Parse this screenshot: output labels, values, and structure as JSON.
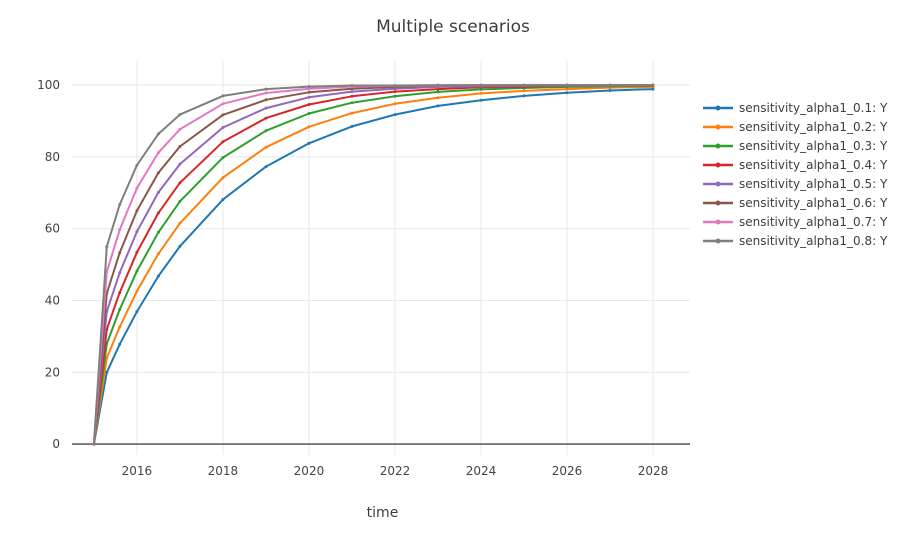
{
  "figure": {
    "title": "Multiple scenarios",
    "x_axis_label": "time"
  },
  "chart_data": {
    "type": "line",
    "title": "Multiple scenarios",
    "xlabel": "time",
    "ylabel": "",
    "xlim": [
      2014.56,
      2028.86
    ],
    "ylim": [
      -5,
      107
    ],
    "x_ticks": [
      2016,
      2018,
      2020,
      2022,
      2024,
      2026,
      2028
    ],
    "y_ticks": [
      0,
      20,
      40,
      60,
      80,
      100
    ],
    "grid": true,
    "legend_position": "right",
    "background_color": "#ffffff",
    "grid_color": "#e8e8e8",
    "zero_line_color": "#444444",
    "text_color": "#3d3d3d",
    "x": [
      2015,
      2015.3,
      2015.6,
      2016,
      2016.5,
      2017,
      2018,
      2019,
      2020,
      2021,
      2022,
      2023,
      2024,
      2025,
      2026,
      2027,
      2028
    ],
    "series": [
      {
        "name": "sensitivity_alpha1_0.1: Y",
        "alpha1": 0.1,
        "color": "#1f77b4",
        "values": [
          0,
          20,
          27.8,
          36.9,
          46.8,
          55.1,
          68.1,
          77.3,
          83.8,
          88.5,
          91.8,
          94.2,
          95.8,
          97.0,
          97.9,
          98.5,
          98.9
        ]
      },
      {
        "name": "sensitivity_alpha1_0.2: Y",
        "alpha1": 0.2,
        "color": "#ff7f0e",
        "values": [
          0,
          24,
          32.6,
          42.6,
          53.0,
          61.5,
          74.2,
          82.7,
          88.4,
          92.2,
          94.8,
          96.5,
          97.7,
          98.4,
          98.9,
          99.3,
          99.5
        ]
      },
      {
        "name": "sensitivity_alpha1_0.3: Y",
        "alpha1": 0.3,
        "color": "#2ca02c",
        "values": [
          0,
          28,
          37.5,
          48.2,
          59.0,
          67.6,
          79.8,
          87.3,
          92.1,
          95.1,
          96.9,
          98.1,
          98.8,
          99.2,
          99.5,
          99.7,
          99.8
        ]
      },
      {
        "name": "sensitivity_alpha1_0.4: Y",
        "alpha1": 0.4,
        "color": "#d62728",
        "values": [
          0,
          32,
          42.2,
          53.4,
          64.4,
          72.8,
          84.2,
          90.8,
          94.6,
          96.9,
          98.2,
          98.9,
          99.4,
          99.6,
          99.8,
          99.9,
          99.9
        ]
      },
      {
        "name": "sensitivity_alpha1_0.5: Y",
        "alpha1": 0.5,
        "color": "#9467bd",
        "values": [
          0,
          37,
          47.7,
          59.2,
          70.1,
          78.0,
          88.2,
          93.6,
          96.6,
          98.2,
          99.0,
          99.5,
          99.7,
          99.8,
          99.9,
          99.9,
          100.0
        ]
      },
      {
        "name": "sensitivity_alpha1_0.6: Y",
        "alpha1": 0.6,
        "color": "#8c564b",
        "values": [
          0,
          42,
          53.3,
          65.0,
          75.6,
          82.9,
          91.7,
          95.9,
          98.0,
          99.0,
          99.5,
          99.8,
          99.9,
          99.9,
          100.0,
          100.0,
          100.0
        ]
      },
      {
        "name": "sensitivity_alpha1_0.7: Y",
        "alpha1": 0.7,
        "color": "#e377c2",
        "values": [
          0,
          48,
          59.7,
          71.3,
          81.2,
          87.7,
          94.8,
          97.8,
          99.0,
          99.6,
          99.8,
          99.9,
          100.0,
          100.0,
          100.0,
          100.0,
          100.0
        ]
      },
      {
        "name": "sensitivity_alpha1_0.8: Y",
        "alpha1": 0.8,
        "color": "#7f7f7f",
        "values": [
          0,
          55,
          66.7,
          77.7,
          86.4,
          91.8,
          97.0,
          98.9,
          99.6,
          99.9,
          99.9,
          100.0,
          100.0,
          100.0,
          100.0,
          100.0,
          100.0
        ]
      }
    ]
  }
}
